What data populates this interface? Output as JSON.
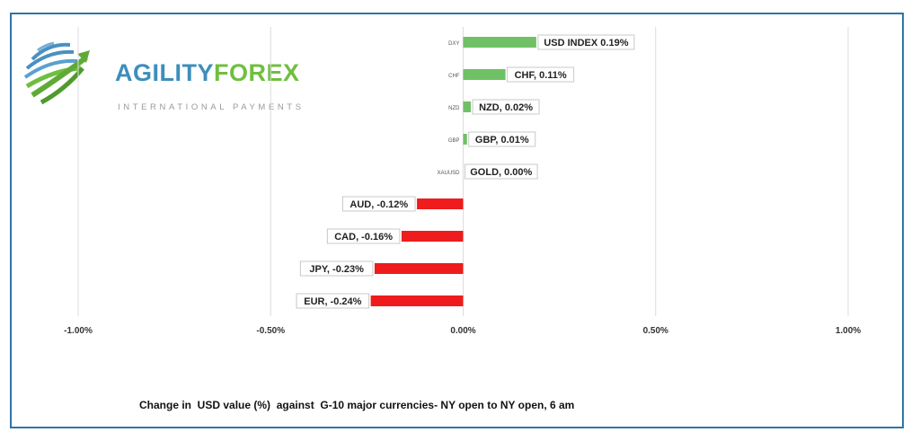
{
  "logo": {
    "word_part1": "AGILITY",
    "word_part2": "FOREX",
    "tagline": "INTERNATIONAL PAYMENTS",
    "colors": {
      "blue": "#3d8ebd",
      "green": "#6fbf3f"
    },
    "icon": "globe-swoosh-icon"
  },
  "caption": "Change in  USD value (%)  against  G-10 major currencies- NY open to NY open, 6 am",
  "chart_data": {
    "type": "bar",
    "orientation": "horizontal",
    "categories": [
      "DXY",
      "CHF",
      "NZD",
      "GBP",
      "XAUUSD",
      "AUD",
      "CAD",
      "JPY",
      "EUR"
    ],
    "values": [
      0.19,
      0.11,
      0.02,
      0.01,
      0.0,
      -0.12,
      -0.16,
      -0.23,
      -0.24
    ],
    "data_labels": [
      "USD INDEX 0.19%",
      "CHF, 0.11%",
      "NZD, 0.02%",
      "GBP, 0.01%",
      "GOLD, 0.00%",
      "AUD, -0.12%",
      "CAD, -0.16%",
      "JPY, -0.23%",
      "EUR, -0.24%"
    ],
    "xlim": [
      -1.0,
      1.0
    ],
    "x_ticks": [
      -1.0,
      -0.5,
      0.0,
      0.5,
      1.0
    ],
    "x_tick_labels": [
      "-1.00%",
      "-0.50%",
      "0.00%",
      "0.50%",
      "1.00%"
    ],
    "grid": "vertical",
    "colors": {
      "positive": "#70c165",
      "negative": "#ee1c1c",
      "grid": "#dcdcdc"
    }
  }
}
